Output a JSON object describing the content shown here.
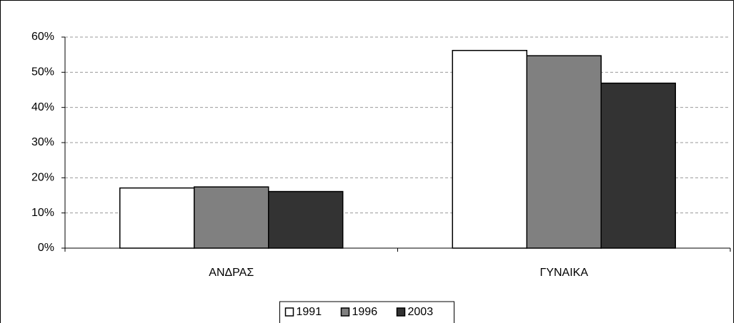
{
  "chart_data": {
    "type": "bar",
    "categories": [
      "ΑΝΔΡΑΣ",
      "ΓΥΝΑΙΚΑ"
    ],
    "series": [
      {
        "name": "1991",
        "color": "#ffffff",
        "values": [
          17.1,
          56.2
        ]
      },
      {
        "name": "1996",
        "color": "#808080",
        "values": [
          17.4,
          54.7
        ]
      },
      {
        "name": "2003",
        "color": "#333333",
        "values": [
          16.1,
          46.9
        ]
      }
    ],
    "ylim": [
      0,
      60
    ],
    "yticks": [
      {
        "value": 0,
        "label": "0%"
      },
      {
        "value": 10,
        "label": "10%"
      },
      {
        "value": 20,
        "label": "20%"
      },
      {
        "value": 30,
        "label": "30%"
      },
      {
        "value": 40,
        "label": "40%"
      },
      {
        "value": 50,
        "label": "50%"
      },
      {
        "value": 60,
        "label": "60%"
      }
    ],
    "grid": true,
    "legend": "bottom"
  }
}
